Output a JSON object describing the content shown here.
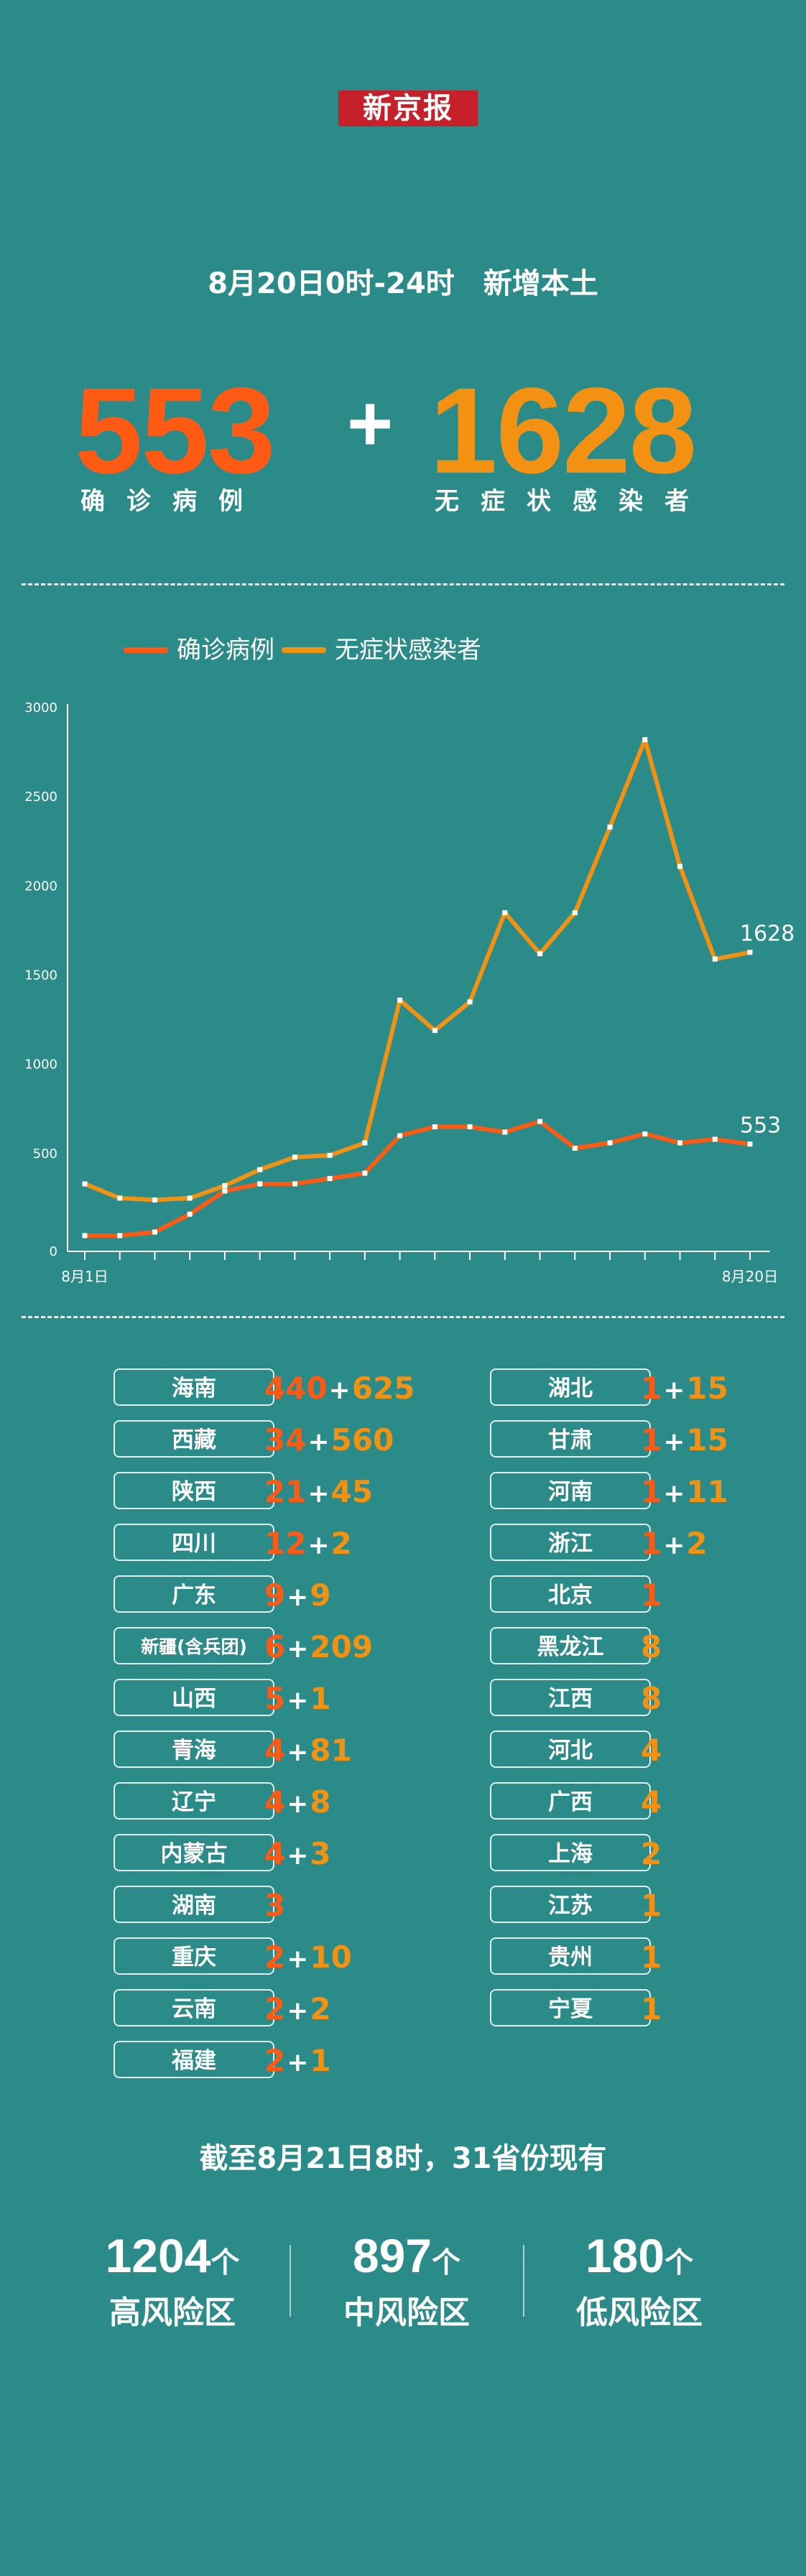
{
  "logo": "新京报",
  "headline": {
    "period": "8月20日0时-24时",
    "topic": "新增本土"
  },
  "summary": {
    "confirmed": "553",
    "plus": "+",
    "asymptomatic": "1628",
    "confirmed_label": "确诊病例",
    "asymptomatic_label": "无症状感染者"
  },
  "colors": {
    "background": "#2a8b88",
    "confirmed": "#ff5a14",
    "asymptomatic": "#f39212",
    "logo": "#c8202a"
  },
  "chart_data": {
    "type": "line",
    "legend_position": "top-left",
    "x": [
      "8月1日",
      "8月2日",
      "8月3日",
      "8月4日",
      "8月5日",
      "8月6日",
      "8月7日",
      "8月8日",
      "8月9日",
      "8月10日",
      "8月11日",
      "8月12日",
      "8月13日",
      "8月14日",
      "8月15日",
      "8月16日",
      "8月17日",
      "8月18日",
      "8月19日",
      "8月20日"
    ],
    "x_tick_labels": [
      "8月1日",
      "8月20日"
    ],
    "series": [
      {
        "name": "确诊病例",
        "color": "#ff5a14",
        "values": [
          40,
          40,
          60,
          160,
          290,
          330,
          330,
          360,
          390,
          600,
          650,
          650,
          620,
          680,
          530,
          560,
          610,
          560,
          580,
          553
        ],
        "end_label": "553"
      },
      {
        "name": "无症状感染者",
        "color": "#f39212",
        "values": [
          330,
          250,
          240,
          250,
          320,
          410,
          480,
          490,
          560,
          1360,
          1190,
          1350,
          1850,
          1620,
          1850,
          2330,
          2820,
          2110,
          1590,
          1628
        ],
        "end_label": "1628"
      }
    ],
    "ylim": [
      0,
      3000
    ],
    "yticks": [
      "0",
      "500",
      "1000",
      "1500",
      "2000",
      "2500",
      "3000"
    ],
    "grid": false
  },
  "provinces_left": [
    {
      "name": "海南",
      "confirmed": "440",
      "asymptomatic": "625"
    },
    {
      "name": "西藏",
      "confirmed": "34",
      "asymptomatic": "560"
    },
    {
      "name": "陕西",
      "confirmed": "21",
      "asymptomatic": "45"
    },
    {
      "name": "四川",
      "confirmed": "12",
      "asymptomatic": "2"
    },
    {
      "name": "广东",
      "confirmed": "9",
      "asymptomatic": "9"
    },
    {
      "name": "新疆(含兵团)",
      "confirmed": "6",
      "asymptomatic": "209",
      "small": true
    },
    {
      "name": "山西",
      "confirmed": "5",
      "asymptomatic": "1"
    },
    {
      "name": "青海",
      "confirmed": "4",
      "asymptomatic": "81"
    },
    {
      "name": "辽宁",
      "confirmed": "4",
      "asymptomatic": "8"
    },
    {
      "name": "内蒙古",
      "confirmed": "4",
      "asymptomatic": "3"
    },
    {
      "name": "湖南",
      "confirmed": "3",
      "asymptomatic": ""
    },
    {
      "name": "重庆",
      "confirmed": "2",
      "asymptomatic": "10"
    },
    {
      "name": "云南",
      "confirmed": "2",
      "asymptomatic": "2"
    },
    {
      "name": "福建",
      "confirmed": "2",
      "asymptomatic": "1"
    }
  ],
  "provinces_right": [
    {
      "name": "湖北",
      "confirmed": "1",
      "asymptomatic": "15"
    },
    {
      "name": "甘肃",
      "confirmed": "1",
      "asymptomatic": "15"
    },
    {
      "name": "河南",
      "confirmed": "1",
      "asymptomatic": "11"
    },
    {
      "name": "浙江",
      "confirmed": "1",
      "asymptomatic": "2"
    },
    {
      "name": "北京",
      "confirmed": "1",
      "asymptomatic": ""
    },
    {
      "name": "黑龙江",
      "confirmed": "",
      "asymptomatic": "8"
    },
    {
      "name": "江西",
      "confirmed": "",
      "asymptomatic": "8"
    },
    {
      "name": "河北",
      "confirmed": "",
      "asymptomatic": "4"
    },
    {
      "name": "广西",
      "confirmed": "",
      "asymptomatic": "4"
    },
    {
      "name": "上海",
      "confirmed": "",
      "asymptomatic": "2"
    },
    {
      "name": "江苏",
      "confirmed": "",
      "asymptomatic": "1"
    },
    {
      "name": "贵州",
      "confirmed": "",
      "asymptomatic": "1"
    },
    {
      "name": "宁夏",
      "confirmed": "",
      "asymptomatic": "1"
    }
  ],
  "footer": {
    "title": "截至8月21日8时，31省份现有",
    "risk_areas": [
      {
        "count": "1204",
        "unit": "个",
        "label": "高风险区"
      },
      {
        "count": "897",
        "unit": "个",
        "label": "中风险区"
      },
      {
        "count": "180",
        "unit": "个",
        "label": "低风险区"
      }
    ]
  }
}
